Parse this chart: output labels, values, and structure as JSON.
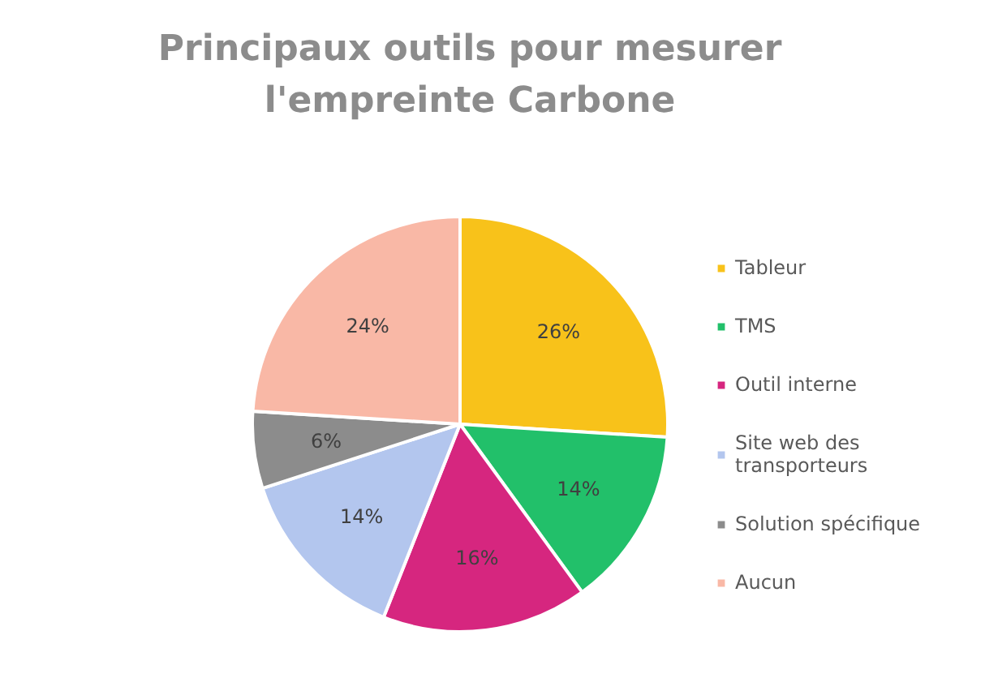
{
  "chart_data": {
    "type": "pie",
    "title": "Principaux outils pour mesurer l'empreinte Carbone",
    "categories": [
      "Tableur",
      "TMS",
      "Outil interne",
      "Site web des transporteurs",
      "Solution spécifique",
      "Aucun"
    ],
    "values": [
      26,
      14,
      16,
      14,
      6,
      24
    ],
    "colors": [
      "#f8c21a",
      "#22c06a",
      "#d6267f",
      "#b3c6ee",
      "#8c8c8c",
      "#f9b8a6"
    ],
    "value_labels": [
      "26%",
      "14%",
      "16%",
      "14%",
      "6%",
      "24%"
    ],
    "legend": "right"
  }
}
